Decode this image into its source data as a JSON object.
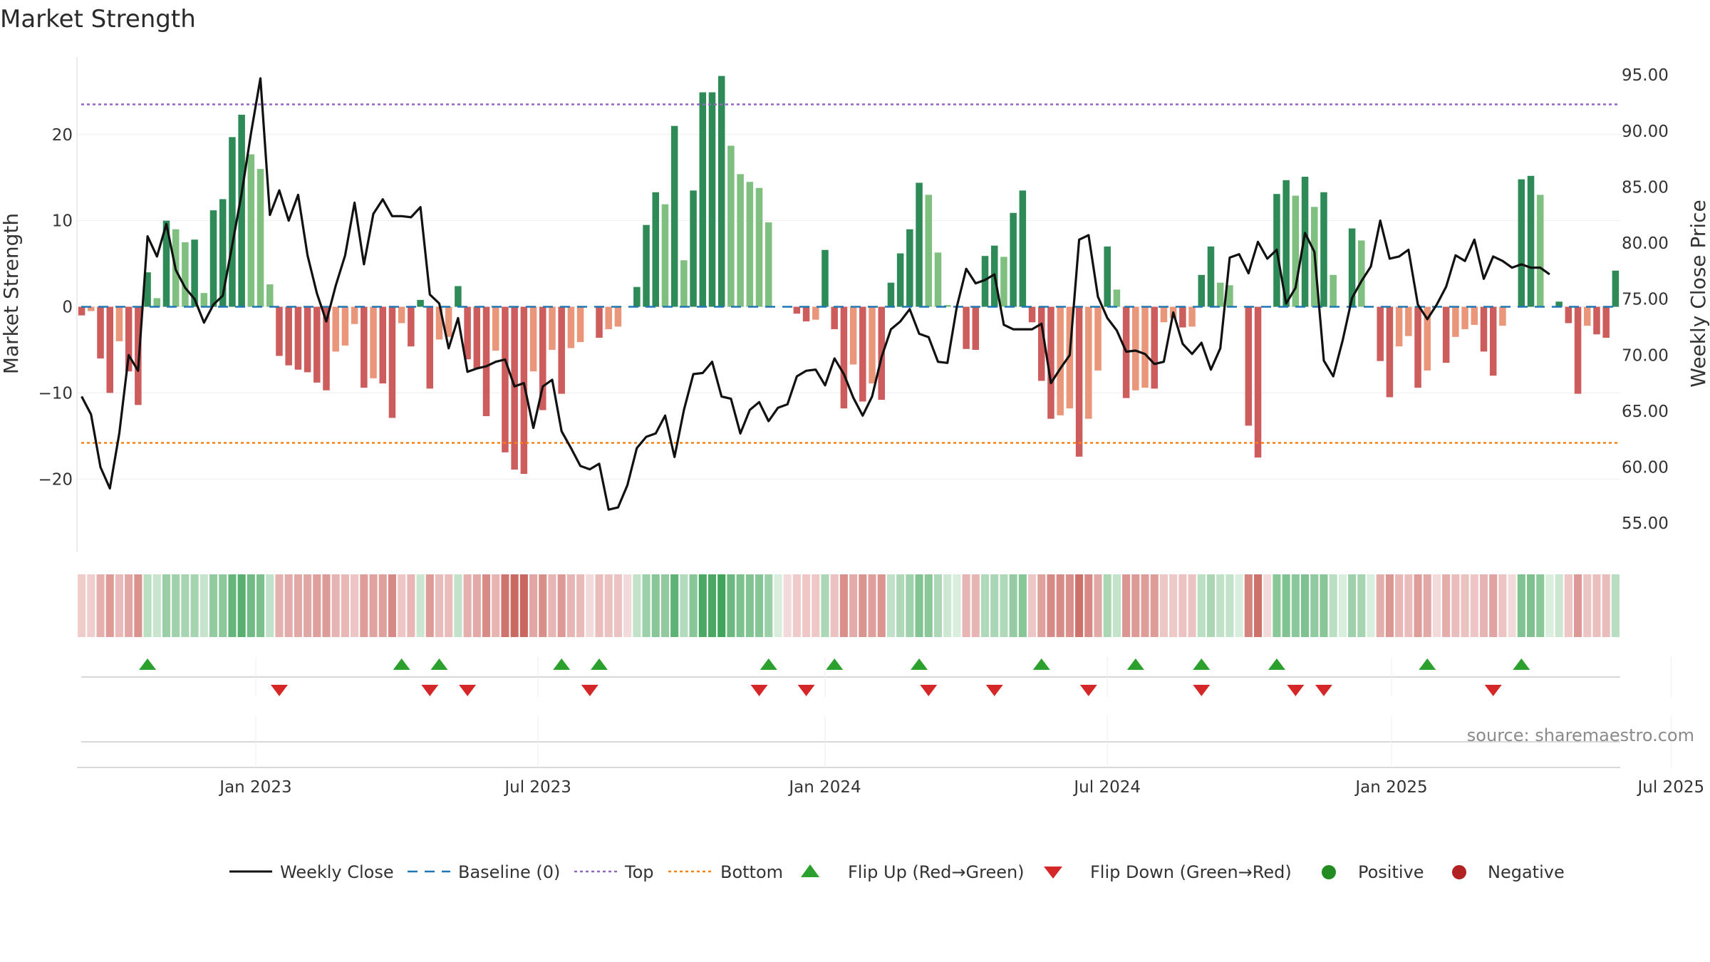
{
  "chart_data": {
    "type": "bar+line",
    "title": "Market Strength",
    "ylabel": "Market Strength",
    "y2label": "Weekly Close Price",
    "ylim": [
      -28.5,
      29
    ],
    "y2lim": [
      52.4,
      96.6
    ],
    "yticks": [
      20,
      10,
      0,
      -10,
      -20
    ],
    "ytick_labels": [
      "20",
      "10",
      "0",
      "−10",
      "−20"
    ],
    "y2ticks": [
      95,
      90,
      85,
      80,
      75,
      70,
      65,
      60,
      55
    ],
    "y2tick_labels": [
      "95.00",
      "90.00",
      "85.00",
      "80.00",
      "75.00",
      "70.00",
      "65.00",
      "60.00",
      "55.00"
    ],
    "top_line": 23.5,
    "bottom_line": -15.8,
    "baseline": 0,
    "xtick_positions": [
      19.0,
      49.0,
      79.5,
      109.5,
      139.7,
      169.4
    ],
    "xtick_labels": [
      "Jan 2023",
      "Jul 2023",
      "Jan 2024",
      "Jul 2024",
      "Jan 2025",
      "Jul 2025"
    ],
    "strength": [
      -1.0,
      -0.5,
      -6.0,
      -10.0,
      -4.0,
      -7.5,
      -11.4,
      4.0,
      1.0,
      10.0,
      9.0,
      7.5,
      7.8,
      1.6,
      11.2,
      12.5,
      19.7,
      22.3,
      17.7,
      16.0,
      2.6,
      -5.7,
      -6.8,
      -7.3,
      -7.6,
      -8.8,
      -9.7,
      -5.2,
      -4.5,
      -2.0,
      -9.4,
      -8.3,
      -8.9,
      -12.9,
      -1.9,
      -4.6,
      0.8,
      -9.5,
      -3.8,
      -3.5,
      2.4,
      -6.1,
      -7.2,
      -12.7,
      -5.1,
      -16.9,
      -18.9,
      -19.4,
      -7.5,
      -12.0,
      -5.0,
      -10.1,
      -4.8,
      -4.1,
      0,
      -3.6,
      -2.6,
      -2.3,
      0,
      2.3,
      9.5,
      13.3,
      11.9,
      21.0,
      5.4,
      13.5,
      24.9,
      24.9,
      26.8,
      18.7,
      15.4,
      14.5,
      13.8,
      9.8,
      0,
      0,
      -0.8,
      -1.7,
      -1.5,
      6.6,
      -2.6,
      -11.8,
      -6.7,
      -11.0,
      -8.9,
      -10.8,
      2.8,
      6.2,
      9.0,
      14.4,
      13.0,
      6.3,
      0.2,
      0,
      -4.9,
      -5.0,
      5.9,
      7.1,
      5.8,
      10.9,
      13.5,
      -1.8,
      -8.6,
      -13.0,
      -12.6,
      -11.8,
      -17.4,
      -13.0,
      -7.4,
      7.0,
      2.0,
      -10.6,
      -9.7,
      -9.4,
      -9.5,
      -1.8,
      -1.3,
      -2.4,
      -2.3,
      3.7,
      7.0,
      2.8,
      2.5,
      0,
      -13.8,
      -17.5,
      0,
      13.1,
      14.7,
      12.9,
      15.1,
      11.6,
      13.3,
      3.7,
      0,
      9.1,
      7.7,
      0,
      -6.3,
      -10.5,
      -4.6,
      -3.4,
      -9.4,
      -7.4,
      0,
      -6.5,
      -3.5,
      -2.6,
      -2.1,
      -5.2,
      -8.0,
      -2.2,
      0,
      14.8,
      15.2,
      13.0,
      0,
      0.6,
      -1.9,
      -10.1,
      -2.2,
      -3.2,
      -3.6,
      4.2
    ],
    "close": [
      66.3,
      64.7,
      60.0,
      58.1,
      63.0,
      70.0,
      68.6,
      80.6,
      78.8,
      81.7,
      77.6,
      76.0,
      75.0,
      72.9,
      74.5,
      75.3,
      79.8,
      84.4,
      89.8,
      94.7,
      82.5,
      84.7,
      82.0,
      84.3,
      78.9,
      75.5,
      73.0,
      76.2,
      78.9,
      83.6,
      78.1,
      82.6,
      83.9,
      82.4,
      82.4,
      82.3,
      83.2,
      75.4,
      74.6,
      70.6,
      73.3,
      68.5,
      68.8,
      69.0,
      69.4,
      69.6,
      67.2,
      67.5,
      63.5,
      67.2,
      67.8,
      63.2,
      61.7,
      60.1,
      59.8,
      60.3,
      56.2,
      56.4,
      58.4,
      61.7,
      62.7,
      63.0,
      64.6,
      60.9,
      65.1,
      68.3,
      68.4,
      69.4,
      66.3,
      66.1,
      63.0,
      65.1,
      65.8,
      64.1,
      65.3,
      65.6,
      68.1,
      68.6,
      68.7,
      67.3,
      69.7,
      68.3,
      66.2,
      64.6,
      66.3,
      69.8,
      72.3,
      73.0,
      74.1,
      71.9,
      71.6,
      69.4,
      69.3,
      74.3,
      77.7,
      76.4,
      76.7,
      77.2,
      72.7,
      72.3,
      72.3,
      72.3,
      72.8,
      67.5,
      68.8,
      70.0,
      80.3,
      80.7,
      75.2,
      73.3,
      72.2,
      70.3,
      70.4,
      70.1,
      69.2,
      69.4,
      73.8,
      71.0,
      70.1,
      71.1,
      68.7,
      70.6,
      78.7,
      79.0,
      77.3,
      80.1,
      78.6,
      79.4,
      74.6,
      76.0,
      80.9,
      79.2,
      69.5,
      68.1,
      71.3,
      75.1,
      76.6,
      77.9,
      82.0,
      78.6,
      78.8,
      79.4,
      74.5,
      73.2,
      74.5,
      76.1,
      78.9,
      78.4,
      80.3,
      76.8,
      78.8,
      78.4,
      77.8,
      78.1,
      77.8,
      77.8,
      77.2
    ],
    "flips_up": [
      7,
      34,
      38,
      51,
      55,
      73,
      80,
      89,
      102,
      112,
      119,
      127,
      143,
      153
    ],
    "flips_down": [
      21,
      37,
      41,
      54,
      72,
      77,
      90,
      97,
      107,
      119,
      129,
      132,
      150
    ],
    "source_text": "source: sharemaestro.com",
    "legend": [
      "Weekly Close",
      "Baseline (0)",
      "Top",
      "Bottom",
      "Flip Up (Red→Green)",
      "Flip Down (Green→Red)",
      "Positive",
      "Negative"
    ],
    "colors": {
      "pos_strong": "#2e8b57",
      "pos_light": "#7fbf7f",
      "neg_strong": "#cd5c5c",
      "neg_light": "#e9967a",
      "line": "#111111",
      "baseline": "#1f77b4",
      "top": "#9467bd",
      "bottom": "#ff7f0e",
      "flip_up": "#2ca02c",
      "flip_down": "#d62728",
      "positive": "#228b22",
      "negative": "#b22222"
    }
  }
}
